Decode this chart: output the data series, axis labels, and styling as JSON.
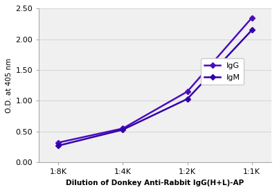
{
  "x_labels": [
    "1:8K",
    "1:4K",
    "1:2K",
    "1:1K"
  ],
  "x_values": [
    0,
    1,
    2,
    3
  ],
  "IgG_values": [
    0.32,
    0.55,
    1.15,
    2.35
  ],
  "IgM_values": [
    0.27,
    0.53,
    1.03,
    2.15
  ],
  "IgG_color": "#4B0DBF",
  "IgM_color": "#3300AA",
  "ylabel": "O.D. at 405 nm",
  "xlabel": "Dilution of Donkey Anti-Rabbit IgG(H+L)-AP",
  "ylim": [
    0.0,
    2.5
  ],
  "yticks": [
    0.0,
    0.5,
    1.0,
    1.5,
    2.0,
    2.5
  ],
  "legend_IgG": "IgG",
  "legend_IgM": "IgM",
  "background_color": "#ffffff",
  "grid_color": "#d8d8d8",
  "plot_bg_color": "#f0f0f0"
}
